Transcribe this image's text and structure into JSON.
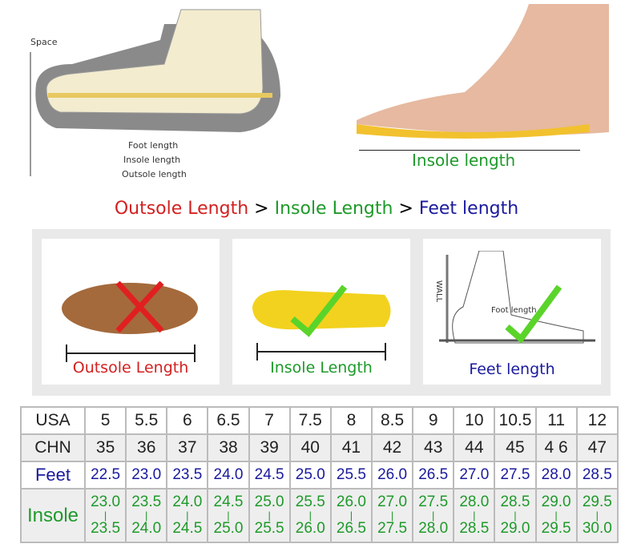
{
  "diagram": {
    "space": "Space",
    "foot_length": "Foot length",
    "insole_length": "Insole length",
    "outsole_length": "Outsole length"
  },
  "photo": {
    "insole_length": "Insole length"
  },
  "headline": {
    "outsole": "Outsole Length",
    "sep1": " > ",
    "insole": "Insole Length",
    "sep2": " > ",
    "feet": "Feet length"
  },
  "colors": {
    "red": "#d42020",
    "green": "#1e9a2a",
    "blue": "#1a1a9e",
    "check": "#5ad42a"
  },
  "panels": [
    {
      "label": "Outsole Length",
      "mark": "cross-icon"
    },
    {
      "label": "Insole Length",
      "mark": "check-icon"
    },
    {
      "label": "Feet length",
      "mark": "check-icon",
      "wall": "WALL",
      "foot_length": "Foot length"
    }
  ],
  "table": {
    "rows": [
      {
        "header": "USA",
        "values": [
          "5",
          "5.5",
          "6",
          "6.5",
          "7",
          "7.5",
          "8",
          "8.5",
          "9",
          "10",
          "10.5",
          "11",
          "12"
        ]
      },
      {
        "header": "CHN",
        "values": [
          "35",
          "36",
          "37",
          "38",
          "39",
          "40",
          "41",
          "42",
          "43",
          "44",
          "45",
          "4 6",
          "47"
        ]
      },
      {
        "header": "Feet",
        "values": [
          "22.5",
          "23.0",
          "23.5",
          "24.0",
          "24.5",
          "25.0",
          "25.5",
          "26.0",
          "26.5",
          "27.0",
          "27.5",
          "28.0",
          "28.5"
        ]
      },
      {
        "header": "Insole",
        "from": [
          "23.0",
          "23.5",
          "24.0",
          "24.5",
          "25.0",
          "25.5",
          "26.0",
          "27.0",
          "27.5",
          "28.0",
          "28.5",
          "29.0",
          "29.5"
        ],
        "to": [
          "23.5",
          "24.0",
          "24.5",
          "25.0",
          "25.5",
          "26.0",
          "26.5",
          "27.5",
          "28.0",
          "28.5",
          "29.0",
          "29.5",
          "30.0"
        ]
      }
    ]
  }
}
